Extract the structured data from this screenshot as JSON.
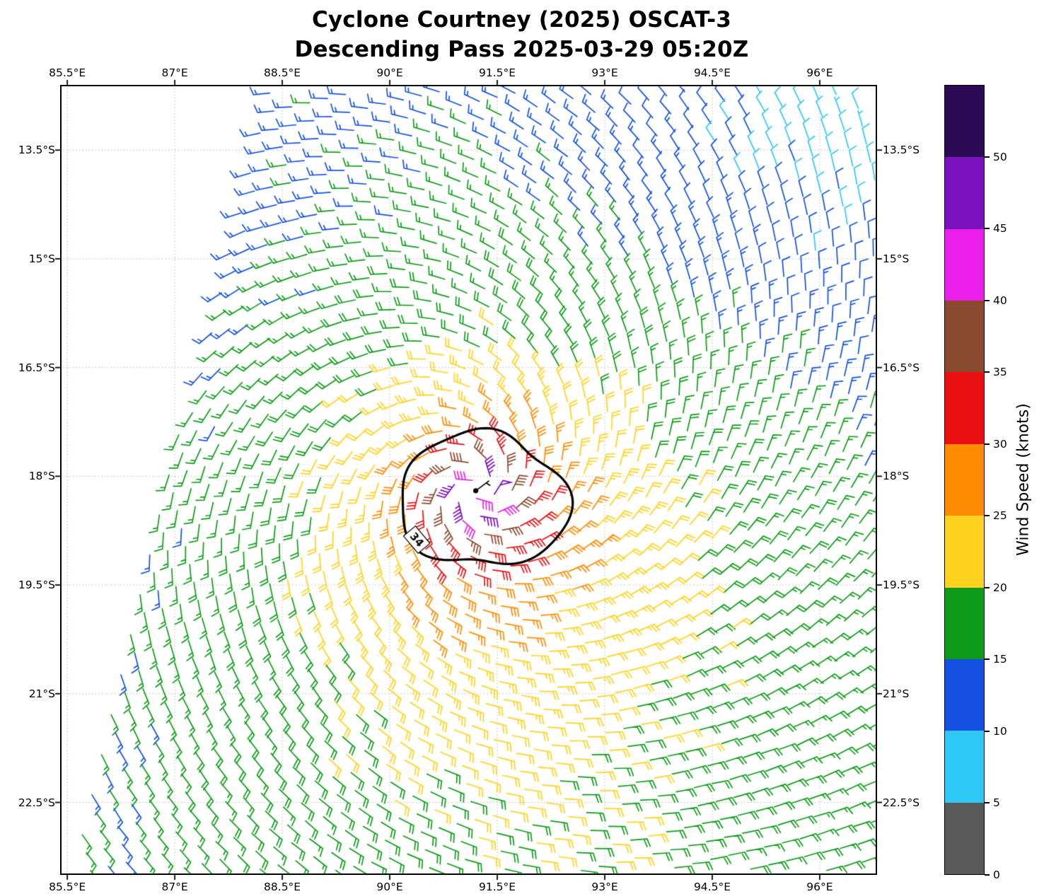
{
  "chart_data": {
    "type": "wind_barb_map",
    "title_line1": "Cyclone Courtney (2025) OSCAT-3",
    "title_line2": "Descending Pass 2025-03-29 05:20Z",
    "x_axis": {
      "range": [
        85.4,
        96.8
      ],
      "ticks": [
        {
          "value": 85.5,
          "label": "85.5°E"
        },
        {
          "value": 87,
          "label": "87°E"
        },
        {
          "value": 88.5,
          "label": "88.5°E"
        },
        {
          "value": 90,
          "label": "90°E"
        },
        {
          "value": 91.5,
          "label": "91.5°E"
        },
        {
          "value": 93,
          "label": "93°E"
        },
        {
          "value": 94.5,
          "label": "94.5°E"
        },
        {
          "value": 96,
          "label": "96°E"
        }
      ]
    },
    "y_axis": {
      "range": [
        12.6,
        23.5
      ],
      "ticks": [
        {
          "value": 13.5,
          "label": "13.5°S"
        },
        {
          "value": 15,
          "label": "15°S"
        },
        {
          "value": 16.5,
          "label": "16.5°S"
        },
        {
          "value": 18,
          "label": "18°S"
        },
        {
          "value": 19.5,
          "label": "19.5°S"
        },
        {
          "value": 21,
          "label": "21°S"
        },
        {
          "value": 22.5,
          "label": "22.5°S"
        }
      ]
    },
    "colorbar": {
      "label": "Wind Speed (knots)",
      "max": 55,
      "ticks": [
        {
          "value": 0,
          "label": "0"
        },
        {
          "value": 5,
          "label": "5"
        },
        {
          "value": 10,
          "label": "10"
        },
        {
          "value": 15,
          "label": "15"
        },
        {
          "value": 20,
          "label": "20"
        },
        {
          "value": 25,
          "label": "25"
        },
        {
          "value": 30,
          "label": "30"
        },
        {
          "value": 35,
          "label": "35"
        },
        {
          "value": 40,
          "label": "40"
        },
        {
          "value": 45,
          "label": "45"
        },
        {
          "value": 50,
          "label": "50"
        }
      ],
      "bin_edges": [
        0,
        5,
        10,
        15,
        20,
        25,
        30,
        35,
        40,
        45,
        50,
        55
      ],
      "colors": [
        "#595959",
        "#2fc8f5",
        "#1451e0",
        "#0e9c18",
        "#ffd21f",
        "#ff8c00",
        "#e81012",
        "#8a4a30",
        "#ea1fea",
        "#7a10c0",
        "#2c0a54"
      ]
    },
    "cyclone": {
      "center_lon": 91.2,
      "center_lat_s": 18.2,
      "vmax_knots": 47,
      "rmax_deg": 0.3,
      "decay_exponent": 0.4,
      "inflow_deg": 22,
      "ambient_west_base_kt": 0.3,
      "ambient_west_per_deg_south": 0.4
    },
    "contour": {
      "value_label": "34",
      "speed_kt": 34,
      "center_lon": 91.3,
      "center_lat_s": 18.33,
      "radius_deg": 1.04
    },
    "swath": {
      "rotation_deg": 13,
      "spacing_px": 26,
      "left_edge_top": {
        "lon": 88.25,
        "lat_s": 12.6
      },
      "left_edge_bottom": {
        "lon": 85.55,
        "lat_s": 23.5
      }
    },
    "grid": {
      "show": true,
      "style": "dotted"
    }
  }
}
